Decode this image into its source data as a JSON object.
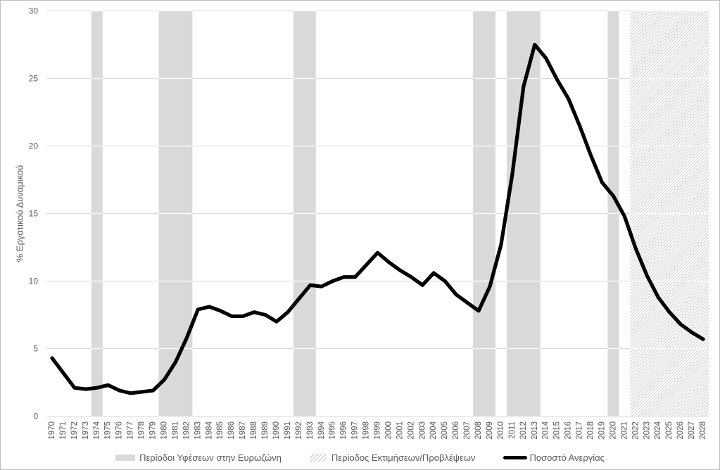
{
  "legend": {
    "recessions_label": "Περίοδοι Υφέσεων στην Ευρωζώνη",
    "forecast_label": "Περίοδος Εκτιμήσεων/Προβλέψεων",
    "series_label": "Ποσοστό Ανεργίας"
  },
  "colors": {
    "background": "#ffffff",
    "border": "#bdbdbd",
    "recession_band": "#d9d9d9",
    "gridline": "#d9d9d9",
    "gridline_over_band": "#ffffff",
    "hatch_line": "#c6c6c6",
    "axis_text": "#595959",
    "line": "#000000"
  },
  "chart_data": {
    "type": "line",
    "title": "",
    "xlabel": "",
    "ylabel": "% Εργατικού Δυναμικού",
    "ylim": [
      0,
      30
    ],
    "yticks": [
      0,
      5,
      10,
      15,
      20,
      25,
      30
    ],
    "grid": "horizontal",
    "legend_position": "bottom",
    "x": [
      1970,
      1971,
      1972,
      1973,
      1974,
      1975,
      1976,
      1977,
      1978,
      1979,
      1980,
      1981,
      1982,
      1983,
      1984,
      1985,
      1986,
      1987,
      1988,
      1989,
      1990,
      1991,
      1992,
      1993,
      1994,
      1995,
      1996,
      1997,
      1998,
      1999,
      2000,
      2001,
      2002,
      2003,
      2004,
      2005,
      2006,
      2007,
      2008,
      2009,
      2010,
      2011,
      2012,
      2013,
      2014,
      2015,
      2016,
      2017,
      2018,
      2019,
      2020,
      2021,
      2022,
      2023,
      2024,
      2025,
      2026,
      2027,
      2028
    ],
    "series": [
      {
        "name": "Ποσοστό Ανεργίας",
        "values": [
          4.3,
          3.2,
          2.1,
          2.0,
          2.1,
          2.3,
          1.9,
          1.7,
          1.8,
          1.9,
          2.7,
          4.0,
          5.8,
          7.9,
          8.1,
          7.8,
          7.4,
          7.4,
          7.7,
          7.5,
          7.0,
          7.7,
          8.7,
          9.7,
          9.6,
          10.0,
          10.3,
          10.3,
          11.2,
          12.1,
          11.4,
          10.8,
          10.3,
          9.7,
          10.6,
          10.0,
          9.0,
          8.4,
          7.8,
          9.6,
          12.7,
          17.9,
          24.4,
          27.5,
          26.5,
          24.9,
          23.5,
          21.5,
          19.3,
          17.3,
          16.3,
          14.8,
          12.4,
          10.4,
          8.8,
          7.7,
          6.8,
          6.2,
          5.7
        ]
      }
    ],
    "recession_bands": [
      [
        1973.5,
        1974.5
      ],
      [
        1979.5,
        1982.5
      ],
      [
        1991.5,
        1993.5
      ],
      [
        2007.5,
        2009.5
      ],
      [
        2010.5,
        2013.5
      ],
      [
        2019.5,
        2020.5
      ]
    ],
    "forecast_band": [
      2021.5,
      2028.65
    ]
  }
}
